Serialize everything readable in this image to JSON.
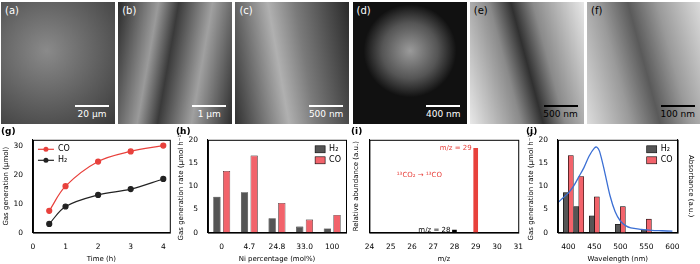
{
  "images": [
    {
      "label": "(a)",
      "scale_bar": "20 μm"
    },
    {
      "label": "(b)",
      "scale_bar": "1 μm"
    },
    {
      "label": "(c)",
      "scale_bar": "500 nm"
    },
    {
      "label": "(d)",
      "scale_bar": "400 nm"
    },
    {
      "label": "(e)",
      "scale_bar": "500 nm"
    },
    {
      "label": "(f)",
      "scale_bar": "100 nm"
    }
  ],
  "chart_data": [
    {
      "type": "line",
      "title": "(g)",
      "x_label": "Time (h)",
      "y_label": "Gas generation (μmol)",
      "x": [
        0.5,
        1,
        2,
        3,
        4
      ],
      "series": [
        {
          "name": "CO",
          "color": "#e8413c",
          "marker": "circle",
          "values": [
            7.5,
            16,
            24.5,
            28,
            30
          ]
        },
        {
          "name": "H₂",
          "color": "#222222",
          "marker": "circle",
          "values": [
            3,
            9,
            13,
            15,
            18.5
          ]
        }
      ],
      "xlim": [
        0,
        4.2
      ],
      "xticks": [
        0,
        1,
        2,
        3,
        4
      ],
      "ylim": [
        0,
        32
      ],
      "yticks": [
        0,
        10,
        20,
        30
      ],
      "legend": "upper left"
    },
    {
      "type": "bar",
      "title": "(h)",
      "x_label": "Ni percentage (mol%)",
      "y_label": "Gas generation rate (μmol h⁻¹)",
      "categories": [
        "0",
        "4.7",
        "24.8",
        "33.0",
        "100"
      ],
      "series": [
        {
          "name": "H₂",
          "color": "#555555",
          "values": [
            7.7,
            8.7,
            3.1,
            1.3,
            0.9
          ]
        },
        {
          "name": "CO",
          "color": "#f2636b",
          "values": [
            13.3,
            16.6,
            6.4,
            2.8,
            3.8
          ]
        }
      ],
      "ylim": [
        0,
        20
      ],
      "yticks": [
        0,
        5,
        10,
        15,
        20
      ],
      "legend": "upper right"
    },
    {
      "type": "bar",
      "title": "(i)",
      "x_label": "m/z",
      "y_label": "Relative abundance (a.u.)",
      "x": [
        28,
        29
      ],
      "values": [
        3,
        100
      ],
      "colors": [
        "#000000",
        "#e8413c"
      ],
      "xlim": [
        24,
        31
      ],
      "xticks": [
        24,
        25,
        26,
        27,
        28,
        29,
        30,
        31
      ],
      "ylim": [
        0,
        110
      ],
      "tick_labels": "x",
      "annotations": [
        {
          "text": "m/z = 29",
          "x": 29,
          "y": 100,
          "color": "#e8413c"
        },
        {
          "text": "m/z = 28",
          "x": 28,
          "y": 3,
          "color": "#000000"
        },
        {
          "text": "¹³CO₂ → ¹³CO",
          "x": 27.6,
          "y": 68,
          "color": "#e8413c"
        }
      ]
    },
    {
      "type": "bar",
      "title": "(j)",
      "x_label": "Wavelength (nm)",
      "y_label": "Gas generation rate (μmol h⁻¹)",
      "y2_label": "Absorbance (a.u.)",
      "x": [
        400,
        420,
        450,
        500,
        550
      ],
      "series": [
        {
          "name": "H₂",
          "color": "#555555",
          "values": [
            8.6,
            5.6,
            3.6,
            1.8,
            0.6
          ]
        },
        {
          "name": "CO",
          "color": "#f2636b",
          "values": [
            16.6,
            12.1,
            7.7,
            5.6,
            2.9
          ]
        },
        {
          "type": "line",
          "axis": "y2",
          "color": "#3b6fd4",
          "x": [
            380,
            390,
            400,
            410,
            420,
            430,
            440,
            450,
            455,
            460,
            470,
            480,
            490,
            500,
            510,
            520,
            540,
            560,
            580,
            600
          ],
          "values": [
            6.5,
            7.5,
            8.5,
            10,
            12,
            14,
            16.5,
            18.2,
            18.4,
            17.5,
            13,
            8,
            4.5,
            2.5,
            1.5,
            1,
            0.7,
            0.5,
            0.4,
            0.3
          ]
        }
      ],
      "xlim": [
        380,
        610
      ],
      "xticks": [
        400,
        450,
        500,
        550,
        600
      ],
      "ylim": [
        0,
        20
      ],
      "yticks": [
        0,
        5,
        10,
        15,
        20
      ],
      "y2lim": [
        0,
        20
      ],
      "legend": "upper right"
    }
  ]
}
